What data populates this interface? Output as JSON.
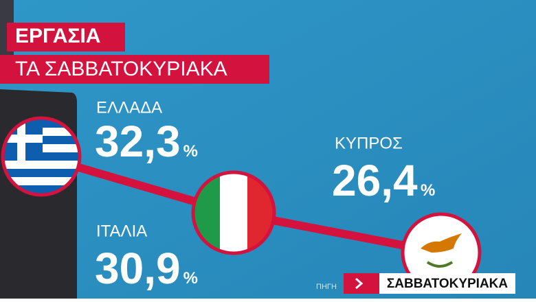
{
  "header": {
    "title": "ΕΡΓΑΣΙΑ",
    "subtitle": "ΤΑ ΣΑΒΒΑΤΟΚΥΡΙΑΚΑ"
  },
  "items": [
    {
      "label": "ΕΛΛΑΔΑ",
      "value": "32,3",
      "unit": "%"
    },
    {
      "label": "ΙΤΑΛΙΑ",
      "value": "30,9",
      "unit": "%"
    },
    {
      "label": "ΚΥΠΡΟΣ",
      "value": "26,4",
      "unit": "%"
    }
  ],
  "footer": {
    "source": "ΠΗΓΗ",
    "ticker": "ΣΑΒΒΑΤΟΚΥΡΙΑΚΑ"
  }
}
